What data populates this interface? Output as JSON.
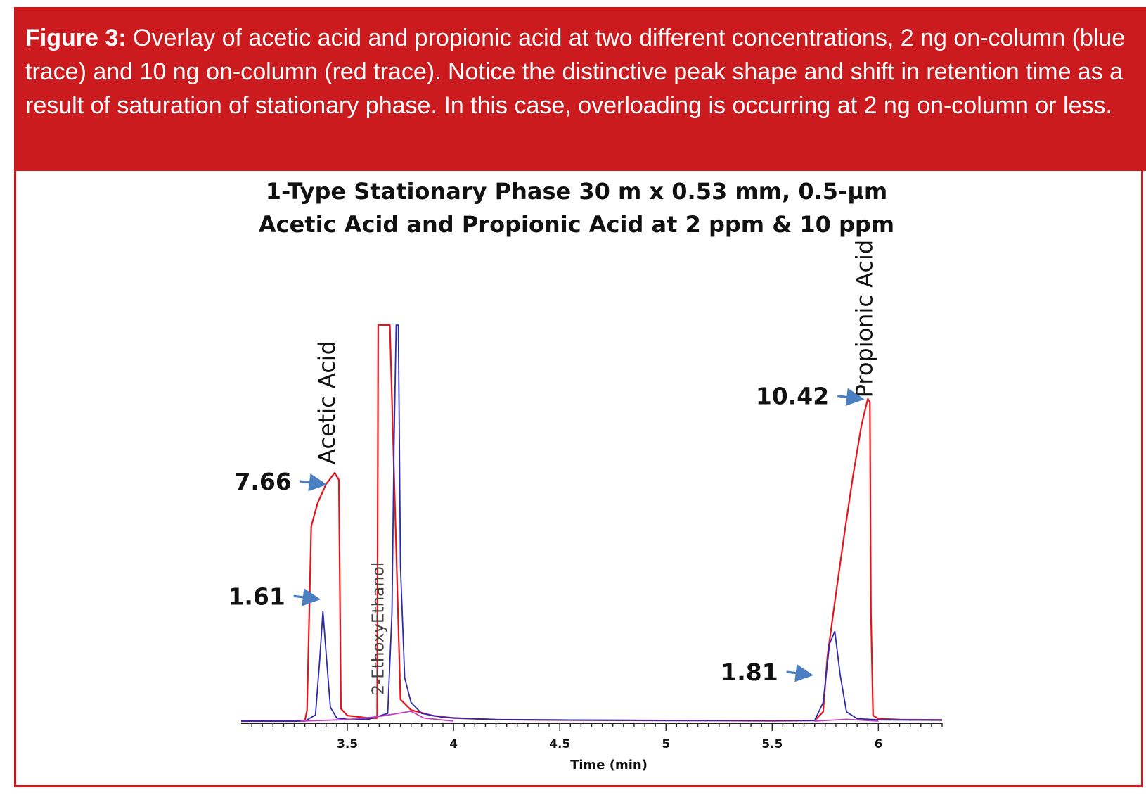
{
  "caption": {
    "lead": "Figure 3:",
    "text": " Overlay of acetic acid and propionic acid at two different concentrations, 2 ng on-column (blue trace) and 10 ng on-column (red trace). Notice the distinctive peak shape and shift in retention time as a result of saturation of stationary phase. In this case, overloading is occurring at 2 ng on-column or less."
  },
  "colors": {
    "accent": "#cc1b1e",
    "red_trace": "#e8141c",
    "blue_trace": "#2b2bb0",
    "baseline_trace": "#c040c0",
    "arrow": "#4a7fc1"
  },
  "chart_data": {
    "type": "line",
    "title": [
      "1-Type Stationary Phase 30 m x 0.53 mm, 0.5-µm",
      "Acetic Acid and Propionic Acid at 2 ppm & 10 ppm"
    ],
    "xlabel": "Time (min)",
    "ylabel": "",
    "xlim": [
      3.0,
      6.3
    ],
    "ylim": [
      0,
      12.8
    ],
    "x_ticks": [
      3.5,
      4,
      4.5,
      5,
      5.5,
      6
    ],
    "x_tick_labels": [
      "3.5",
      "4",
      "4.5",
      "5",
      "5.5",
      "6"
    ],
    "grid": false,
    "series": [
      {
        "key": "red",
        "color": "#e8141c",
        "x": [
          3.0,
          3.25,
          3.3,
          3.31,
          3.33,
          3.36,
          3.4,
          3.44,
          3.46,
          3.47,
          3.5,
          3.6,
          3.63,
          3.64,
          3.645,
          3.65,
          3.7,
          3.75,
          3.8,
          3.9,
          4.0,
          4.2,
          4.6,
          5.0,
          5.5,
          5.7,
          5.74,
          5.76,
          5.8,
          5.84,
          5.88,
          5.92,
          5.95,
          5.96,
          5.965,
          5.975,
          6.0,
          6.1,
          6.3
        ],
        "y": [
          0.0,
          0.0,
          0.02,
          0.35,
          6.3,
          7.05,
          7.66,
          8.02,
          7.8,
          0.4,
          0.18,
          0.1,
          0.09,
          0.1,
          12.8,
          12.8,
          12.8,
          0.7,
          0.36,
          0.18,
          0.1,
          0.05,
          0.03,
          0.02,
          0.01,
          0.02,
          0.3,
          2.1,
          4.1,
          6.05,
          7.9,
          9.55,
          10.42,
          10.3,
          3.5,
          0.18,
          0.08,
          0.05,
          0.04
        ]
      },
      {
        "key": "blue",
        "color": "#2b2bb0",
        "x": [
          3.0,
          3.3,
          3.35,
          3.37,
          3.385,
          3.4,
          3.42,
          3.45,
          3.5,
          3.6,
          3.69,
          3.71,
          3.72,
          3.73,
          3.74,
          3.75,
          3.77,
          3.8,
          3.85,
          3.95,
          4.2,
          5.0,
          5.7,
          5.74,
          5.77,
          5.795,
          5.82,
          5.85,
          5.9,
          6.0,
          6.3
        ],
        "y": [
          0.0,
          0.0,
          0.2,
          2.0,
          3.55,
          2.2,
          0.45,
          0.1,
          0.06,
          0.06,
          0.25,
          3.5,
          9.0,
          12.8,
          12.8,
          5.0,
          1.4,
          0.6,
          0.25,
          0.12,
          0.05,
          0.02,
          0.02,
          0.6,
          2.5,
          2.9,
          1.5,
          0.3,
          0.08,
          0.04,
          0.03
        ]
      },
      {
        "key": "baseline",
        "color": "#c040c0",
        "x": [
          3.28,
          3.5,
          3.65,
          3.8,
          3.86,
          4.0
        ],
        "y": [
          0.0,
          0.05,
          0.15,
          0.32,
          0.1,
          0.0
        ]
      },
      {
        "key": "baseline2",
        "color": "#c040c0",
        "x": [
          5.7,
          5.85,
          6.0
        ],
        "y": [
          0.0,
          0.06,
          0.0
        ]
      }
    ],
    "peak_labels": [
      {
        "text": "Acetic Acid",
        "x": 3.44,
        "y": 8.3,
        "style": "peak"
      },
      {
        "text": "2-EthoxyEthanol",
        "x": 3.67,
        "y": 0.85,
        "style": "peak-grey"
      },
      {
        "text": "Propionic Acid",
        "x": 5.97,
        "y": 10.45,
        "style": "peak"
      }
    ],
    "annotations": [
      {
        "text": "7.66",
        "x": 3.41,
        "y": 7.66
      },
      {
        "text": "1.61",
        "x": 3.38,
        "y": 3.95
      },
      {
        "text": "10.42",
        "x": 5.94,
        "y": 10.42
      },
      {
        "text": "1.81",
        "x": 5.7,
        "y": 1.5
      }
    ]
  }
}
